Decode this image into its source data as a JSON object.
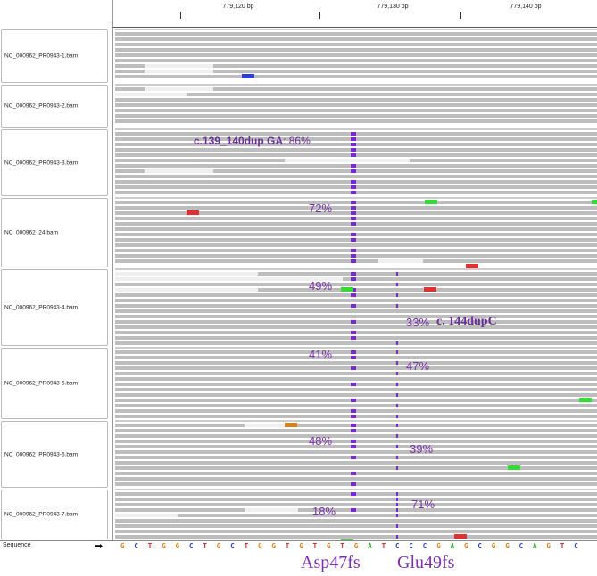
{
  "ruler": {
    "ticks": [
      "779,120 bp",
      "779,130 bp",
      "779,140 bp"
    ]
  },
  "tracks": [
    {
      "label": "NC_000962_PR0943-1.bam"
    },
    {
      "label": "NC_000962_PR0943-2.bam"
    },
    {
      "label": "NC_000962_PR0943-3.bam"
    },
    {
      "label": "NC_000962_24.bam"
    },
    {
      "label": "NC_000962_PR0943-4.bam"
    },
    {
      "label": "NC_000962_PR0943-5.bam"
    },
    {
      "label": "NC_000962_PR0943-6.bam"
    },
    {
      "label": "NC_000962_PR0943-7.bam"
    }
  ],
  "annotations": {
    "variant1_name": "c.139_140dup GA",
    "variant1_suffix": ": 86%",
    "pct_24": "72%",
    "pct_4a": "49%",
    "pct_4b": "33%",
    "variant2_name": "c. 144dupC",
    "pct_5a": "41%",
    "pct_5b": "47%",
    "pct_6a": "48%",
    "pct_6b": "39%",
    "pct_7a": "18%",
    "pct_7b": "71%"
  },
  "sequence": {
    "label": "Sequence",
    "arrow": "➡",
    "bases": [
      "G",
      "C",
      "T",
      "G",
      "G",
      "C",
      "T",
      "G",
      "C",
      "T",
      "G",
      "G",
      "T",
      "G",
      "T",
      "G",
      "T",
      "G",
      "A",
      "T",
      "C",
      "C",
      "C",
      "G",
      "A",
      "G",
      "C",
      "G",
      "G",
      "C",
      "A",
      "G",
      "T",
      "C"
    ]
  },
  "amino_acids": {
    "aa1": "Asp47fs",
    "aa2": "Glu49fs"
  },
  "colors": {
    "A": "#2aa22a",
    "C": "#1f3fd6",
    "G": "#d98019",
    "T": "#d42a2a",
    "insertion": "#7a28d6",
    "read": "#bdbdbd"
  }
}
